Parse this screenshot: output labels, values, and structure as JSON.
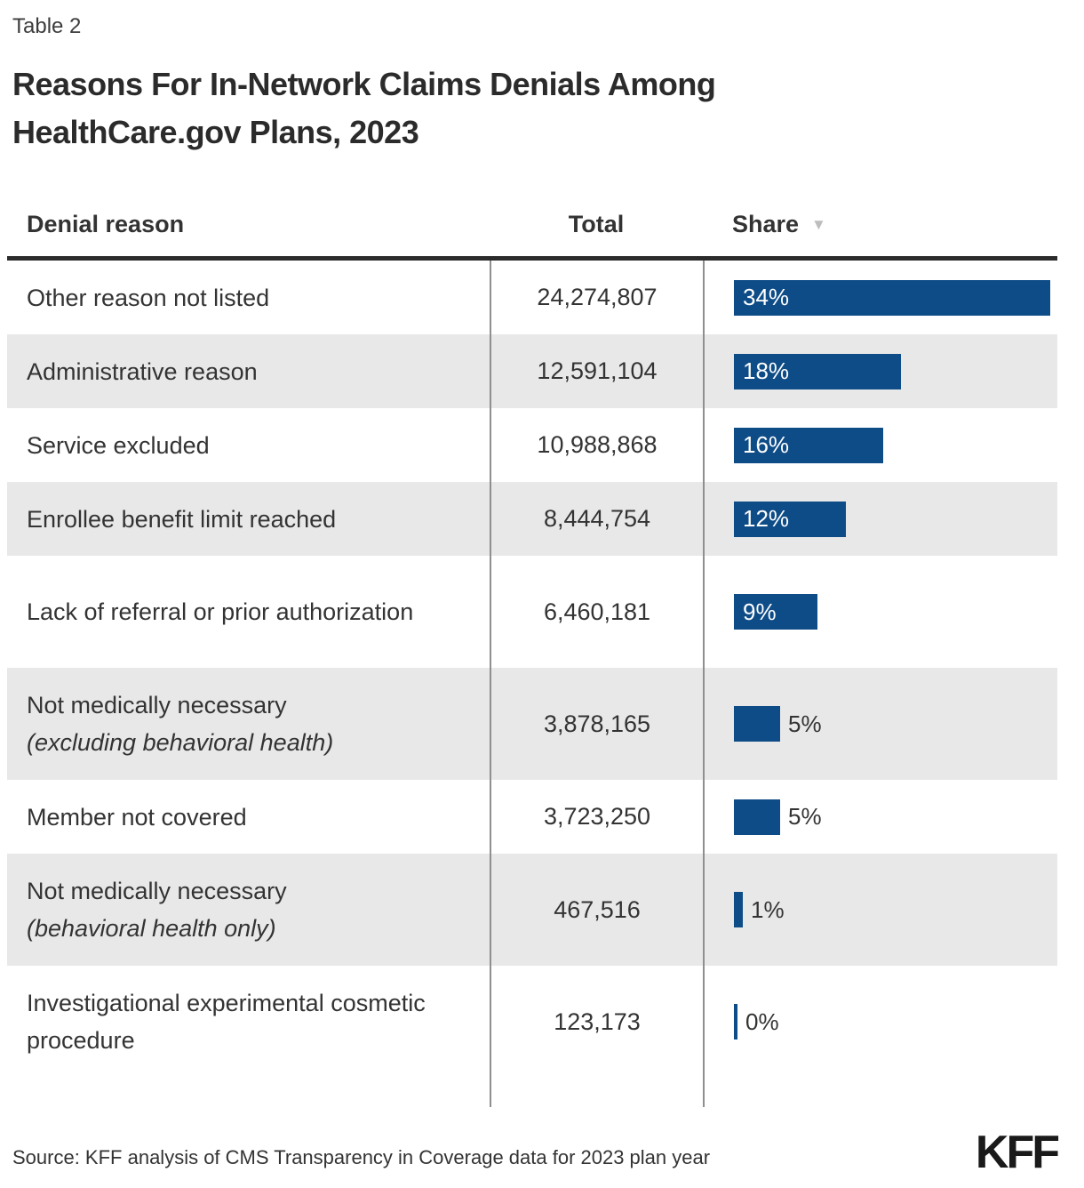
{
  "table_label": "Table 2",
  "title": "Reasons For In-Network Claims Denials Among HealthCare.gov Plans, 2023",
  "columns": {
    "reason": "Denial reason",
    "total": "Total",
    "share": "Share"
  },
  "sort_icon": "▼",
  "colors": {
    "bar": "#0e4c87",
    "row_alt": "#e8e8e8"
  },
  "rows": [
    {
      "reason": "Other reason not listed",
      "note": "",
      "total": "24,274,807",
      "share_pct": 34,
      "share_label": "34%"
    },
    {
      "reason": "Administrative reason",
      "note": "",
      "total": "12,591,104",
      "share_pct": 18,
      "share_label": "18%"
    },
    {
      "reason": "Service excluded",
      "note": "",
      "total": "10,988,868",
      "share_pct": 16,
      "share_label": "16%"
    },
    {
      "reason": "Enrollee benefit limit reached",
      "note": "",
      "total": "8,444,754",
      "share_pct": 12,
      "share_label": "12%"
    },
    {
      "reason": "Lack of referral or prior authorization",
      "note": "",
      "total": "6,460,181",
      "share_pct": 9,
      "share_label": "9%"
    },
    {
      "reason": "Not medically necessary",
      "note": "(excluding behavioral health)",
      "total": "3,878,165",
      "share_pct": 5,
      "share_label": "5%"
    },
    {
      "reason": "Member not covered",
      "note": "",
      "total": "3,723,250",
      "share_pct": 5,
      "share_label": "5%"
    },
    {
      "reason": "Not medically necessary",
      "note": "(behavioral health only)",
      "total": "467,516",
      "share_pct": 1,
      "share_label": "1%"
    },
    {
      "reason": "Investigational experimental cosmetic procedure",
      "note": "",
      "total": "123,173",
      "share_pct": 0,
      "share_label": "0%"
    }
  ],
  "chart_data": {
    "type": "bar",
    "orientation": "horizontal",
    "title": "Reasons For In-Network Claims Denials Among HealthCare.gov Plans, 2023",
    "categories": [
      "Other reason not listed",
      "Administrative reason",
      "Service excluded",
      "Enrollee benefit limit reached",
      "Lack of referral or prior authorization",
      "Not medically necessary (excluding behavioral health)",
      "Member not covered",
      "Not medically necessary (behavioral health only)",
      "Investigational experimental cosmetic procedure"
    ],
    "series": [
      {
        "name": "Total",
        "values": [
          24274807,
          12591104,
          10988868,
          8444754,
          6460181,
          3878165,
          3723250,
          467516,
          123173
        ]
      },
      {
        "name": "Share (%)",
        "values": [
          34,
          18,
          16,
          12,
          9,
          5,
          5,
          1,
          0
        ]
      }
    ],
    "xlim": [
      0,
      34
    ],
    "grid": false,
    "legend": "none",
    "sort": "Share descending"
  },
  "source": "Source: KFF analysis of CMS Transparency in Coverage data for 2023 plan year",
  "logo": "KFF"
}
